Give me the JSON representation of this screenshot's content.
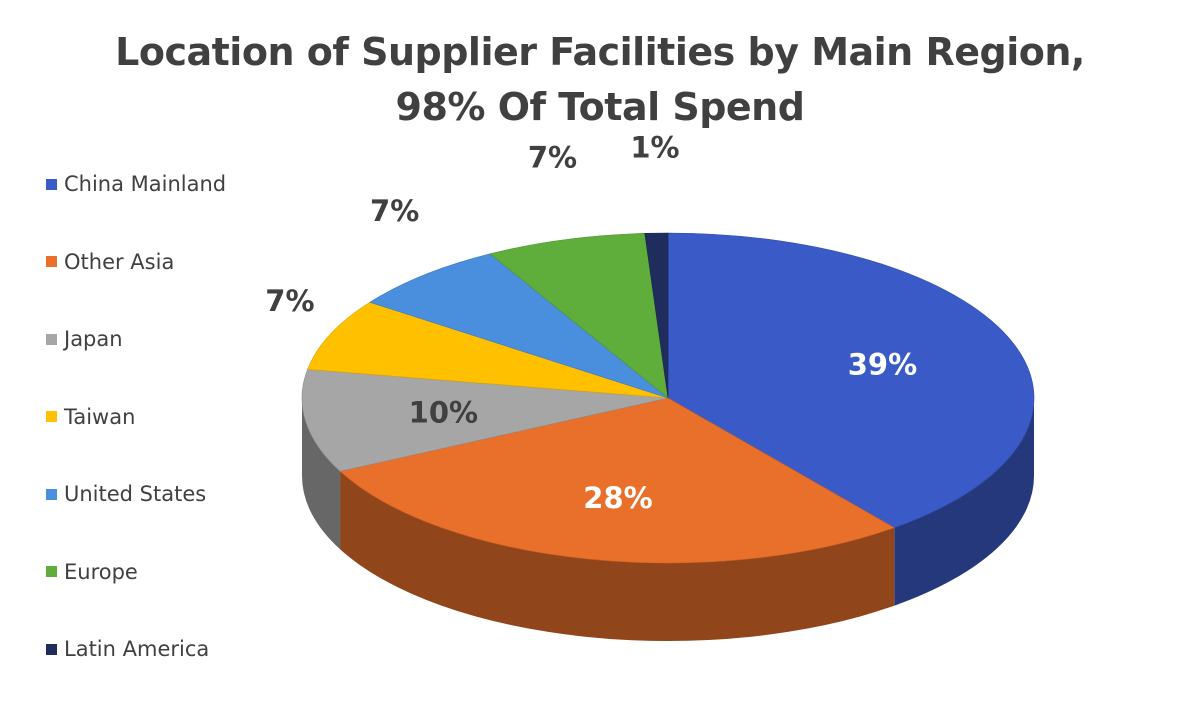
{
  "chart_data": {
    "type": "pie",
    "title": "Location of Supplier Facilities by Main Region, 98% Of Total Spend",
    "title_lines": [
      "Location of Supplier Facilities by Main Region,",
      "98% Of Total Spend"
    ],
    "legend_position": "left",
    "three_d": true,
    "slices": [
      {
        "name": "China Mainland",
        "value": 39,
        "label": "39%",
        "color": "#3a5bc7"
      },
      {
        "name": "Other Asia",
        "value": 28,
        "label": "28%",
        "color": "#e8702a"
      },
      {
        "name": "Japan",
        "value": 10,
        "label": "10%",
        "color": "#a6a6a6"
      },
      {
        "name": "Taiwan",
        "value": 7,
        "label": "7%",
        "color": "#ffc000"
      },
      {
        "name": "United States",
        "value": 7,
        "label": "7%",
        "color": "#4a8fde"
      },
      {
        "name": "Europe",
        "value": 7,
        "label": "7%",
        "color": "#5fad3a"
      },
      {
        "name": "Latin America",
        "value": 1,
        "label": "1%",
        "color": "#1f2d5c"
      }
    ]
  }
}
